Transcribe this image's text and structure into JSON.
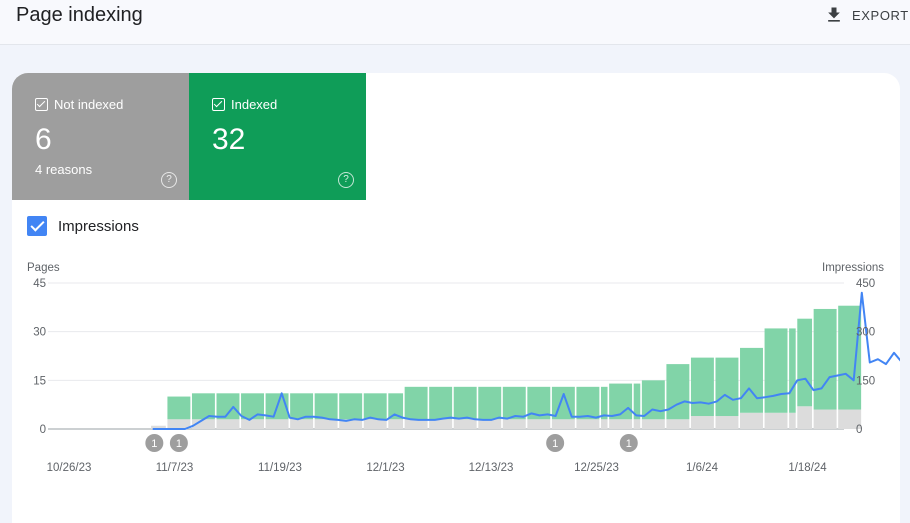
{
  "header": {
    "title": "Page indexing",
    "export_label": "EXPORT"
  },
  "tiles": {
    "not_indexed": {
      "label": "Not indexed",
      "value": "6",
      "sub": "4 reasons",
      "help": "?"
    },
    "indexed": {
      "label": "Indexed",
      "value": "32",
      "help": "?"
    }
  },
  "impressions_toggle": {
    "label": "Impressions",
    "checked": true
  },
  "colors": {
    "indexed": "#81d4a8",
    "not_indexed": "#dcdcdc",
    "impressions": "#4285f4",
    "annotation": "#9e9e9e"
  },
  "chart_data": {
    "type": "bar",
    "left_axis_label": "Pages",
    "right_axis_label": "Impressions",
    "left_ticks": [
      "45",
      "30",
      "15",
      "0"
    ],
    "right_ticks": [
      "450",
      "300",
      "150",
      "0"
    ],
    "ylim_left": [
      0,
      45
    ],
    "ylim_right": [
      0,
      450
    ],
    "x_tick_labels": [
      "10/26/23",
      "11/7/23",
      "11/19/23",
      "12/1/23",
      "12/13/23",
      "12/25/23",
      "1/6/24",
      "1/18/24"
    ],
    "x_start": "10/26/23",
    "bar_groups": [
      {
        "days": 2,
        "indexed": 0,
        "not_indexed": 1
      },
      {
        "days": 3,
        "indexed": 7,
        "not_indexed": 3
      },
      {
        "days": 26,
        "indexed": 8,
        "not_indexed": 3
      },
      {
        "days": 25,
        "indexed": 10,
        "not_indexed": 3
      },
      {
        "days": 4,
        "indexed": 11,
        "not_indexed": 3
      },
      {
        "days": 3,
        "indexed": 12,
        "not_indexed": 3
      },
      {
        "days": 3,
        "indexed": 17,
        "not_indexed": 3
      },
      {
        "days": 6,
        "indexed": 18,
        "not_indexed": 4
      },
      {
        "days": 3,
        "indexed": 20,
        "not_indexed": 5
      },
      {
        "days": 4,
        "indexed": 26,
        "not_indexed": 5
      },
      {
        "days": 2,
        "indexed": 27,
        "not_indexed": 7
      },
      {
        "days": 3,
        "indexed": 31,
        "not_indexed": 6
      },
      {
        "days": 3,
        "indexed": 32,
        "not_indexed": 6
      }
    ],
    "impressions": [
      0,
      0,
      0,
      0,
      0,
      10,
      25,
      40,
      38,
      38,
      68,
      40,
      28,
      45,
      42,
      38,
      110,
      35,
      30,
      38,
      38,
      35,
      30,
      28,
      25,
      30,
      28,
      35,
      30,
      28,
      45,
      35,
      30,
      28,
      28,
      28,
      32,
      35,
      32,
      35,
      30,
      28,
      28,
      35,
      32,
      40,
      38,
      48,
      42,
      45,
      40,
      108,
      38,
      38,
      40,
      35,
      42,
      40,
      45,
      65,
      42,
      40,
      60,
      55,
      60,
      75,
      85,
      80,
      82,
      78,
      85,
      105,
      90,
      95,
      125,
      95,
      98,
      102,
      108,
      110,
      150,
      155,
      120,
      125,
      160,
      165,
      170,
      150,
      420,
      205,
      215,
      200,
      235,
      205,
      225
    ],
    "annotations": [
      {
        "day": 13,
        "label": "1"
      },
      {
        "day": 16,
        "label": "1"
      },
      {
        "day": 62,
        "label": "1"
      },
      {
        "day": 71,
        "label": "1"
      }
    ]
  }
}
